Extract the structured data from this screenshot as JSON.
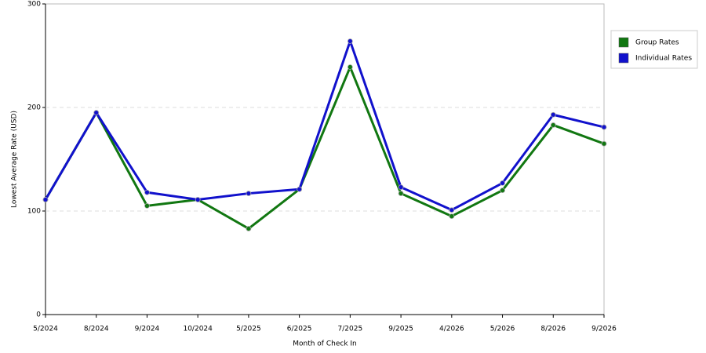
{
  "chart_data": {
    "type": "line",
    "x_label": "Month of Check In",
    "y_label": "Lowest Average Rate (USD)",
    "categories": [
      "5/2024",
      "8/2024",
      "9/2024",
      "10/2024",
      "5/2025",
      "6/2025",
      "7/2025",
      "9/2025",
      "4/2026",
      "5/2026",
      "8/2026",
      "9/2026"
    ],
    "series": [
      {
        "name": "Group Rates",
        "color": "#117711",
        "values": [
          111,
          195,
          105,
          111,
          83,
          121,
          239,
          117,
          95,
          120,
          183,
          165
        ]
      },
      {
        "name": "Individual Rates",
        "color": "#1111cc",
        "values": [
          111,
          195,
          118,
          111,
          117,
          121,
          264,
          123,
          101,
          127,
          193,
          181
        ]
      }
    ],
    "ylim": [
      0,
      300
    ],
    "yticks": [
      0,
      100,
      200,
      300
    ],
    "grid": true,
    "legend": "right"
  }
}
